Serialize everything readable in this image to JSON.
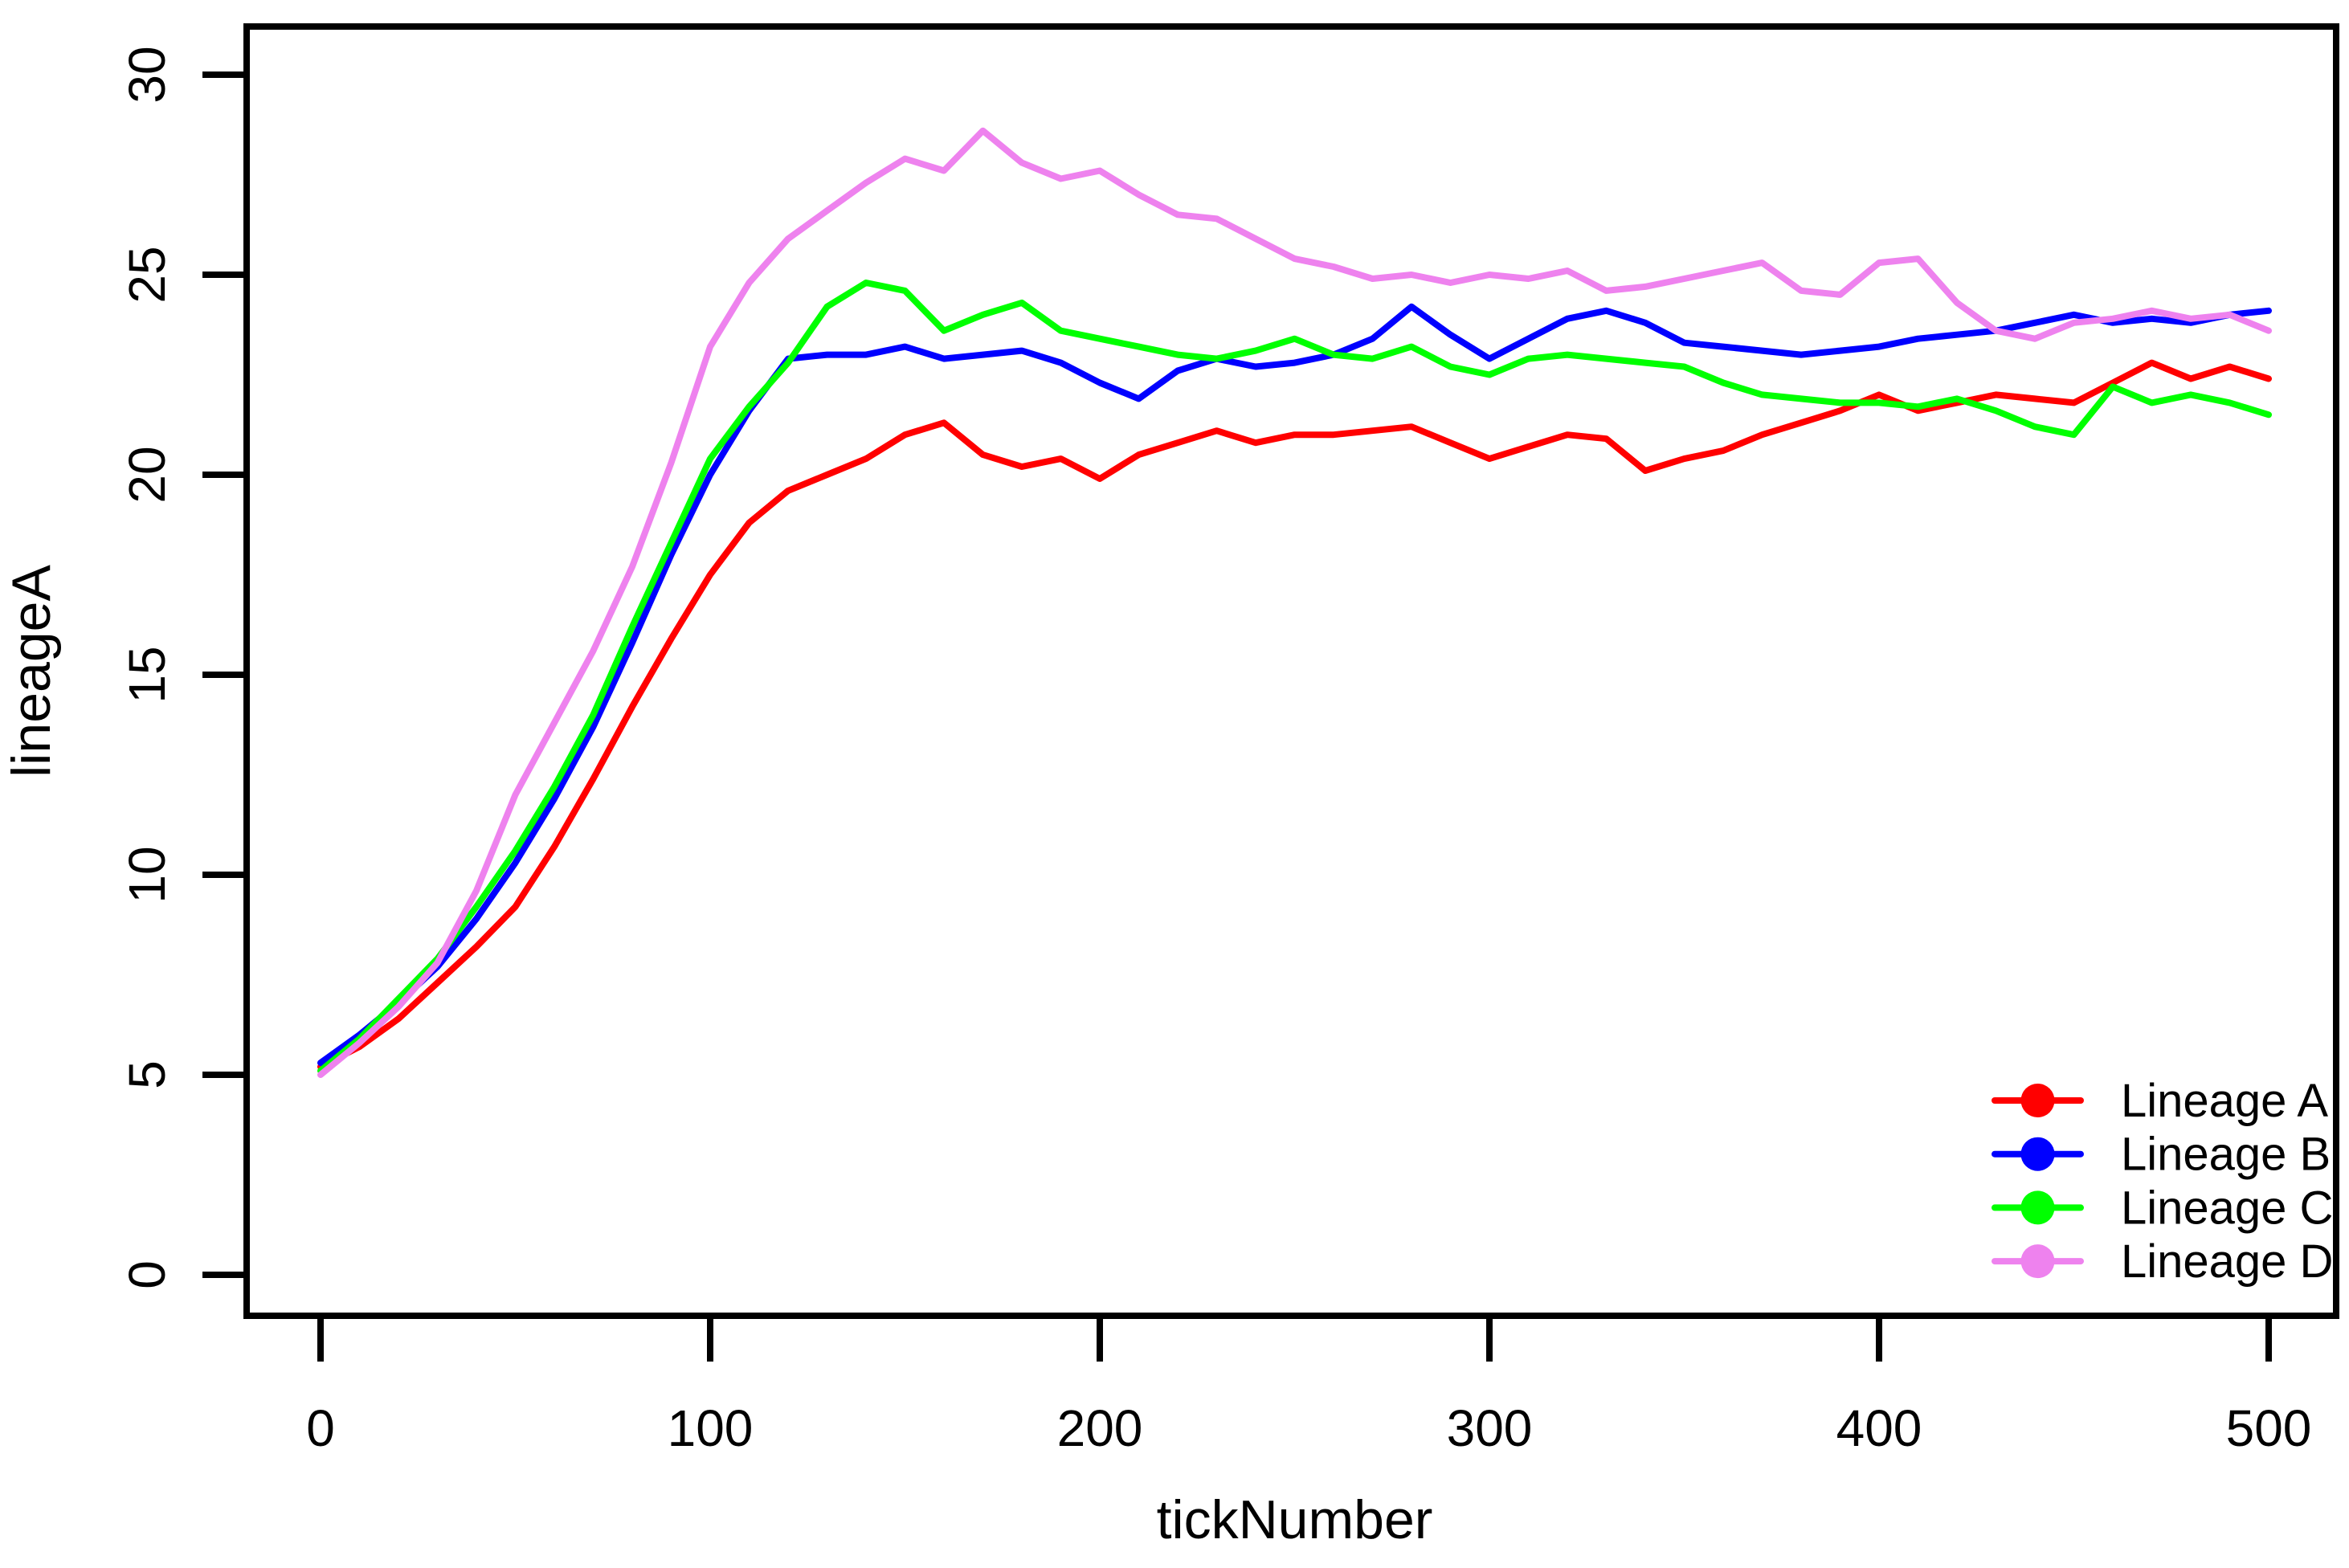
{
  "figure": {
    "background": "#FFFFFF",
    "axis_color": "#000000",
    "xlabel": "tickNumber",
    "ylabel": "lineageA"
  },
  "chart_data": {
    "type": "line",
    "title": "",
    "xlabel": "tickNumber",
    "ylabel": "lineageA",
    "xlim": [
      0,
      500
    ],
    "ylim": [
      0,
      30
    ],
    "xticks": [
      0,
      100,
      200,
      300,
      400,
      500
    ],
    "yticks": [
      0,
      5,
      10,
      15,
      20,
      25,
      30
    ],
    "grid": false,
    "legend_position": "bottom-right",
    "marker": "filled-circle",
    "x": [
      0,
      10,
      20,
      30,
      40,
      50,
      60,
      70,
      80,
      90,
      100,
      110,
      120,
      130,
      140,
      150,
      160,
      170,
      180,
      190,
      200,
      210,
      220,
      230,
      240,
      250,
      260,
      270,
      280,
      290,
      300,
      310,
      320,
      330,
      340,
      350,
      360,
      370,
      380,
      390,
      400,
      410,
      420,
      430,
      440,
      450,
      460,
      470,
      480,
      490,
      500
    ],
    "series": [
      {
        "name": "Lineage A",
        "color": "#FF0000",
        "values": [
          5.2,
          5.7,
          6.4,
          7.3,
          8.2,
          9.2,
          10.7,
          12.4,
          14.2,
          15.9,
          17.5,
          18.8,
          19.6,
          20.0,
          20.4,
          21.0,
          21.3,
          20.5,
          20.2,
          20.4,
          19.9,
          20.5,
          20.8,
          21.1,
          20.8,
          21.0,
          21.0,
          21.1,
          21.2,
          20.8,
          20.4,
          20.7,
          21.0,
          20.9,
          20.1,
          20.4,
          20.6,
          21.0,
          21.3,
          21.6,
          22.0,
          21.6,
          21.8,
          22.0,
          21.9,
          21.8,
          22.3,
          22.8,
          22.4,
          22.7,
          22.4
        ]
      },
      {
        "name": "Lineage B",
        "color": "#0000FF",
        "values": [
          5.3,
          6.0,
          6.8,
          7.7,
          8.9,
          10.3,
          11.9,
          13.7,
          15.8,
          18.0,
          20.0,
          21.6,
          22.9,
          23.0,
          23.0,
          23.2,
          22.9,
          23.0,
          23.1,
          22.8,
          22.3,
          21.9,
          22.6,
          22.9,
          22.7,
          22.8,
          23.0,
          23.4,
          24.2,
          23.5,
          22.9,
          23.4,
          23.9,
          24.1,
          23.8,
          23.3,
          23.2,
          23.1,
          23.0,
          23.1,
          23.2,
          23.4,
          23.5,
          23.6,
          23.8,
          24.0,
          23.8,
          23.9,
          23.8,
          24.0,
          24.1
        ]
      },
      {
        "name": "Lineage C",
        "color": "#00FF00",
        "values": [
          5.1,
          5.9,
          6.9,
          7.9,
          9.2,
          10.6,
          12.2,
          14.0,
          16.2,
          18.3,
          20.4,
          21.7,
          22.8,
          24.2,
          24.8,
          24.6,
          23.6,
          24.0,
          24.3,
          23.6,
          23.4,
          23.2,
          23.0,
          22.9,
          23.1,
          23.4,
          23.0,
          22.9,
          23.2,
          22.7,
          22.5,
          22.9,
          23.0,
          22.9,
          22.8,
          22.7,
          22.3,
          22.0,
          21.9,
          21.8,
          21.8,
          21.7,
          21.9,
          21.6,
          21.2,
          21.0,
          22.2,
          21.8,
          22.0,
          21.8,
          21.5
        ]
      },
      {
        "name": "Lineage D",
        "color": "#EE82EE",
        "values": [
          5.0,
          5.8,
          6.7,
          7.8,
          9.6,
          12.0,
          13.8,
          15.6,
          17.7,
          20.3,
          23.2,
          24.8,
          25.9,
          26.6,
          27.3,
          27.9,
          27.6,
          28.6,
          27.8,
          27.4,
          27.6,
          27.0,
          26.5,
          26.4,
          25.9,
          25.4,
          25.2,
          24.9,
          25.0,
          24.8,
          25.0,
          24.9,
          25.1,
          24.6,
          24.7,
          24.9,
          25.1,
          25.3,
          24.6,
          24.5,
          25.3,
          25.4,
          24.3,
          23.6,
          23.4,
          23.8,
          23.9,
          24.1,
          23.9,
          24.0,
          23.6
        ]
      }
    ],
    "legend": [
      {
        "label": "Lineage A",
        "color": "#FF0000"
      },
      {
        "label": "Lineage B",
        "color": "#0000FF"
      },
      {
        "label": "Lineage C",
        "color": "#00FF00"
      },
      {
        "label": "Lineage D",
        "color": "#EE82EE"
      }
    ]
  }
}
